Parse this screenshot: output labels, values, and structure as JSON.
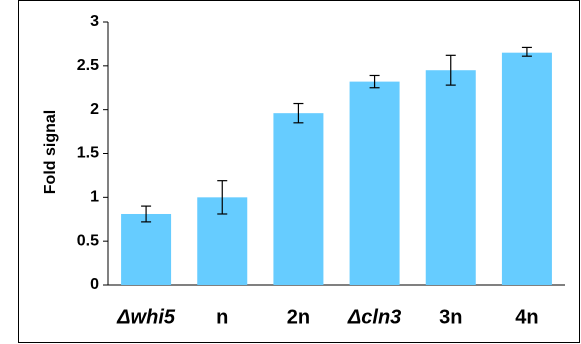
{
  "chart_data": {
    "type": "bar",
    "ylabel": "Fold signal",
    "xlabel": "",
    "title": "",
    "categories": [
      "Δwhi5",
      "n",
      "2n",
      "Δcln3",
      "3n",
      "4n"
    ],
    "italic_categories": [
      true,
      false,
      false,
      true,
      false,
      false
    ],
    "values": [
      0.81,
      1.0,
      1.96,
      2.32,
      2.45,
      2.65
    ],
    "error_low": [
      0.72,
      0.81,
      1.85,
      2.25,
      2.28,
      2.61
    ],
    "error_high": [
      0.9,
      1.19,
      2.07,
      2.39,
      2.62,
      2.71
    ],
    "ylim": [
      0,
      3
    ],
    "yticks": [
      "0",
      "0.5",
      "1",
      "1.5",
      "2",
      "2.5",
      "3"
    ],
    "bar_color": "#66ccff",
    "grid": false,
    "legend": "none"
  }
}
